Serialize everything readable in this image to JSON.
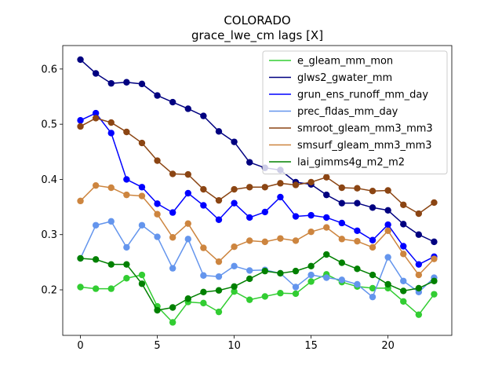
{
  "chart_data": {
    "type": "line",
    "title": "COLORADO",
    "subtitle": "grace_lwe_cm lags [X]",
    "xlabel": "",
    "ylabel": "",
    "xlim": [
      -1.15,
      24.15
    ],
    "ylim": [
      0.1175,
      0.6425
    ],
    "xticks": [
      0,
      5,
      10,
      15,
      20
    ],
    "yticks": [
      0.2,
      0.3,
      0.4,
      0.5,
      0.6
    ],
    "xtick_labels": [
      "0",
      "5",
      "10",
      "15",
      "20"
    ],
    "ytick_labels": [
      "0.2",
      "0.3",
      "0.4",
      "0.5",
      "0.6"
    ],
    "grid": false,
    "legend_position": "upper right",
    "x": [
      0,
      1,
      2,
      3,
      4,
      5,
      6,
      7,
      8,
      9,
      10,
      11,
      12,
      13,
      14,
      15,
      16,
      17,
      18,
      19,
      20,
      21,
      22,
      23
    ],
    "series": [
      {
        "name": "e_gleam_mm_mon",
        "color": "#32cd32",
        "values": [
          0.205,
          0.202,
          0.202,
          0.221,
          0.227,
          0.17,
          0.141,
          0.178,
          0.176,
          0.16,
          0.197,
          0.182,
          0.188,
          0.194,
          0.193,
          0.215,
          0.228,
          0.214,
          0.206,
          0.203,
          0.203,
          0.179,
          0.155,
          0.192
        ]
      },
      {
        "name": "glws2_gwater_mm",
        "color": "#000080",
        "values": [
          0.617,
          0.592,
          0.574,
          0.576,
          0.573,
          0.552,
          0.54,
          0.528,
          0.515,
          0.487,
          0.468,
          0.431,
          0.421,
          0.417,
          0.395,
          0.391,
          0.372,
          0.357,
          0.357,
          0.349,
          0.344,
          0.319,
          0.3,
          0.287
        ]
      },
      {
        "name": "grun_ens_runoff_mm_day",
        "color": "#0000ff",
        "values": [
          0.507,
          0.52,
          0.484,
          0.4,
          0.386,
          0.356,
          0.34,
          0.375,
          0.353,
          0.327,
          0.357,
          0.331,
          0.341,
          0.368,
          0.333,
          0.335,
          0.331,
          0.321,
          0.307,
          0.29,
          0.318,
          0.279,
          0.246,
          0.26
        ]
      },
      {
        "name": "prec_fldas_mm_day",
        "color": "#6495ed",
        "values": [
          0.257,
          0.317,
          0.324,
          0.277,
          0.317,
          0.296,
          0.239,
          0.292,
          0.226,
          0.224,
          0.243,
          0.235,
          0.236,
          0.23,
          0.205,
          0.227,
          0.222,
          0.218,
          0.21,
          0.187,
          0.259,
          0.216,
          0.196,
          0.222
        ]
      },
      {
        "name": "smroot_gleam_mm3_mm3",
        "color": "#8b4513",
        "values": [
          0.496,
          0.511,
          0.503,
          0.486,
          0.466,
          0.434,
          0.41,
          0.409,
          0.382,
          0.362,
          0.382,
          0.386,
          0.386,
          0.393,
          0.39,
          0.395,
          0.404,
          0.385,
          0.384,
          0.379,
          0.38,
          0.354,
          0.338,
          0.358
        ]
      },
      {
        "name": "smsurf_gleam_mm3_mm3",
        "color": "#cd853f",
        "values": [
          0.361,
          0.389,
          0.385,
          0.372,
          0.37,
          0.337,
          0.295,
          0.32,
          0.276,
          0.251,
          0.278,
          0.289,
          0.287,
          0.293,
          0.289,
          0.305,
          0.313,
          0.292,
          0.288,
          0.277,
          0.307,
          0.265,
          0.227,
          0.256
        ]
      },
      {
        "name": "lai_gimms4g_m2_m2",
        "color": "#008000",
        "values": [
          0.257,
          0.255,
          0.246,
          0.246,
          0.211,
          0.163,
          0.168,
          0.184,
          0.196,
          0.199,
          0.206,
          0.22,
          0.234,
          0.23,
          0.234,
          0.243,
          0.264,
          0.249,
          0.238,
          0.227,
          0.21,
          0.198,
          0.203,
          0.216
        ]
      }
    ]
  }
}
